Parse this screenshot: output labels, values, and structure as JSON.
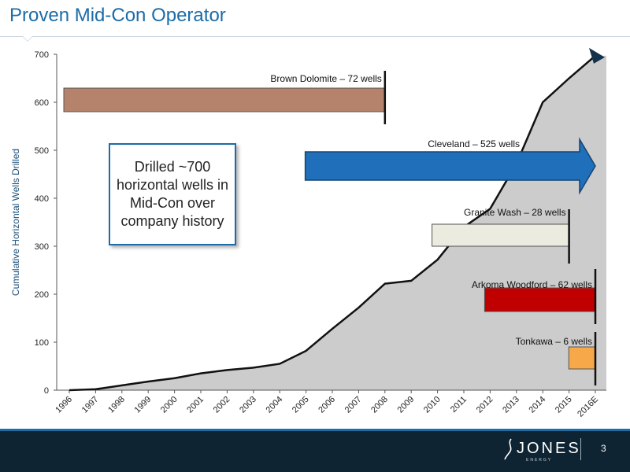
{
  "slide": {
    "title": "Proven Mid-Con Operator",
    "callout": "Drilled ~700\nhorizontal wells in\nMid-Con over\ncompany history",
    "page_number": "3",
    "logo_text": "JONES",
    "logo_subtext": "ENERGY"
  },
  "chart_data": {
    "type": "area",
    "ylabel": "Cumulative Horizontal Wells Drilled",
    "ylim": [
      0,
      700
    ],
    "yticks": [
      0,
      100,
      200,
      300,
      400,
      500,
      600,
      700
    ],
    "categories": [
      "1996",
      "1997",
      "1998",
      "1999",
      "2000",
      "2001",
      "2002",
      "2003",
      "2004",
      "2005",
      "2006",
      "2007",
      "2008",
      "2009",
      "2010",
      "2011",
      "2012",
      "2013",
      "2014",
      "2015",
      "2016E"
    ],
    "values": [
      0,
      2,
      10,
      18,
      25,
      35,
      42,
      47,
      55,
      82,
      128,
      172,
      222,
      228,
      272,
      340,
      378,
      472,
      600,
      650,
      697
    ],
    "grid": false,
    "colors": {
      "area": "#cccccc",
      "line": "#111111",
      "end_arrow": "#15314b"
    },
    "plays": [
      {
        "label": "Brown Dolomite – 72 wells",
        "start": 0,
        "end": 12,
        "color": "#b5826b",
        "style": "bar"
      },
      {
        "label": "Cleveland – 525 wells",
        "start": 9,
        "end": 20,
        "color": "#1f6fba",
        "style": "arrow"
      },
      {
        "label": "Granite Wash – 28 wells",
        "start": 14,
        "end": 19,
        "color": "#ecebe0",
        "style": "bar"
      },
      {
        "label": "Arkoma Woodford – 62 wells",
        "start": 16,
        "end": 20,
        "color": "#c00000",
        "style": "bar"
      },
      {
        "label": "Tonkawa – 6 wells",
        "start": 19.2,
        "end": 20,
        "color": "#f7a94a",
        "style": "bar"
      }
    ]
  }
}
